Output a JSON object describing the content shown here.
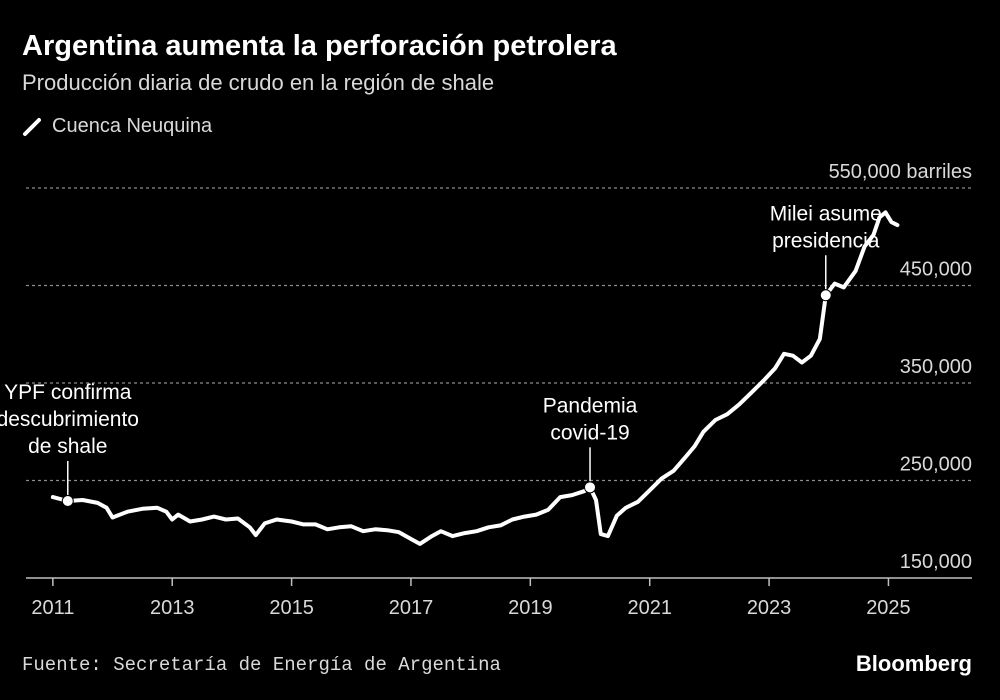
{
  "header": {
    "title": "Argentina aumenta la perforación petrolera",
    "subtitle": "Producción diaria de crudo en la región de shale"
  },
  "legend": {
    "label": "Cuenca Neuquina",
    "color": "#ffffff"
  },
  "footer": {
    "source": "Fuente: Secretaría de Energía de Argentina",
    "brand": "Bloomberg"
  },
  "chart_data": {
    "type": "line",
    "title": "Argentina aumenta la perforación petrolera",
    "subtitle": "Producción diaria de crudo en la región de shale",
    "unit_label": "550,000 barriles",
    "y_tick_values": [
      150000,
      250000,
      350000,
      450000,
      550000
    ],
    "y_tick_labels": [
      "150,000",
      "250,000",
      "350,000",
      "450,000",
      "550,000 barriles"
    ],
    "x_tick_values": [
      2011,
      2013,
      2015,
      2017,
      2019,
      2021,
      2023,
      2025
    ],
    "x_tick_labels": [
      "2011",
      "2013",
      "2015",
      "2017",
      "2019",
      "2021",
      "2023",
      "2025"
    ],
    "xlim": [
      2010.55,
      2026.4
    ],
    "ylim": [
      150000,
      550000
    ],
    "grid": true,
    "legend_position": "top-left",
    "series": [
      {
        "name": "Cuenca Neuquina",
        "color": "#ffffff",
        "points": [
          [
            2011.0,
            233000
          ],
          [
            2011.25,
            229000
          ],
          [
            2011.5,
            230000
          ],
          [
            2011.75,
            227000
          ],
          [
            2011.9,
            222000
          ],
          [
            2012.0,
            212000
          ],
          [
            2012.25,
            218000
          ],
          [
            2012.5,
            221000
          ],
          [
            2012.75,
            222000
          ],
          [
            2012.9,
            218000
          ],
          [
            2013.0,
            210000
          ],
          [
            2013.1,
            215000
          ],
          [
            2013.3,
            208000
          ],
          [
            2013.5,
            210000
          ],
          [
            2013.7,
            213000
          ],
          [
            2013.9,
            210000
          ],
          [
            2014.1,
            211000
          ],
          [
            2014.3,
            202000
          ],
          [
            2014.4,
            194000
          ],
          [
            2014.55,
            206000
          ],
          [
            2014.75,
            210000
          ],
          [
            2015.0,
            208000
          ],
          [
            2015.2,
            205000
          ],
          [
            2015.4,
            205000
          ],
          [
            2015.6,
            200000
          ],
          [
            2015.8,
            202000
          ],
          [
            2016.0,
            203000
          ],
          [
            2016.2,
            198000
          ],
          [
            2016.4,
            200000
          ],
          [
            2016.6,
            199000
          ],
          [
            2016.8,
            197000
          ],
          [
            2017.0,
            190000
          ],
          [
            2017.15,
            185000
          ],
          [
            2017.35,
            193000
          ],
          [
            2017.5,
            198000
          ],
          [
            2017.7,
            193000
          ],
          [
            2017.9,
            196000
          ],
          [
            2018.1,
            198000
          ],
          [
            2018.3,
            202000
          ],
          [
            2018.5,
            204000
          ],
          [
            2018.7,
            210000
          ],
          [
            2018.9,
            213000
          ],
          [
            2019.1,
            215000
          ],
          [
            2019.3,
            220000
          ],
          [
            2019.5,
            233000
          ],
          [
            2019.7,
            235000
          ],
          [
            2019.9,
            239000
          ],
          [
            2020.0,
            243000
          ],
          [
            2020.1,
            230000
          ],
          [
            2020.18,
            195000
          ],
          [
            2020.3,
            193000
          ],
          [
            2020.45,
            214000
          ],
          [
            2020.6,
            222000
          ],
          [
            2020.8,
            228000
          ],
          [
            2021.0,
            240000
          ],
          [
            2021.2,
            252000
          ],
          [
            2021.4,
            260000
          ],
          [
            2021.6,
            274000
          ],
          [
            2021.75,
            285000
          ],
          [
            2021.9,
            300000
          ],
          [
            2022.1,
            312000
          ],
          [
            2022.3,
            318000
          ],
          [
            2022.5,
            328000
          ],
          [
            2022.7,
            340000
          ],
          [
            2022.9,
            352000
          ],
          [
            2023.1,
            365000
          ],
          [
            2023.25,
            380000
          ],
          [
            2023.4,
            378000
          ],
          [
            2023.55,
            371000
          ],
          [
            2023.7,
            378000
          ],
          [
            2023.85,
            395000
          ],
          [
            2023.95,
            440000
          ],
          [
            2024.1,
            452000
          ],
          [
            2024.25,
            448000
          ],
          [
            2024.45,
            465000
          ],
          [
            2024.6,
            490000
          ],
          [
            2024.75,
            502000
          ],
          [
            2024.85,
            520000
          ],
          [
            2024.95,
            525000
          ],
          [
            2025.05,
            515000
          ],
          [
            2025.15,
            512000
          ]
        ]
      }
    ],
    "annotations": [
      {
        "label_lines": [
          "YPF confirma",
          "descubrimiento",
          "de shale"
        ],
        "x": 2011.25,
        "y": 229000
      },
      {
        "label_lines": [
          "Pandemia",
          "covid-19"
        ],
        "x": 2020.0,
        "y": 243000
      },
      {
        "label_lines": [
          "Milei asume",
          "presidencia"
        ],
        "x": 2023.95,
        "y": 440000
      }
    ]
  }
}
